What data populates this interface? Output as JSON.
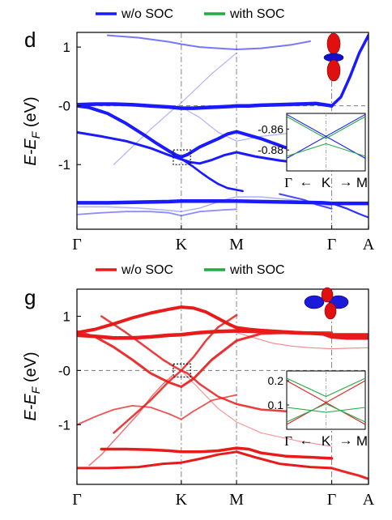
{
  "chart_data": [
    {
      "type": "line",
      "panel_label": "d",
      "legend": [
        {
          "label": "w/o SOC",
          "color": "#1a1aff"
        },
        {
          "label": "with SOC",
          "color": "#22aa44"
        }
      ],
      "ylabel_parts": [
        "E-E",
        "F",
        " (eV)"
      ],
      "ylim": [
        -2.1,
        1.25
      ],
      "yticks": [
        {
          "value": 1,
          "label": "1"
        },
        {
          "value": 0,
          "label": "-0"
        },
        {
          "value": -1,
          "label": "-1"
        }
      ],
      "xlim": [
        0,
        4.75
      ],
      "kpoints": [
        {
          "pos": 0,
          "label": "Γ"
        },
        {
          "pos": 1.7,
          "label": "K"
        },
        {
          "pos": 2.6,
          "label": "M"
        },
        {
          "pos": 4.15,
          "label": "Γ"
        },
        {
          "pos": 4.75,
          "label": "A"
        }
      ],
      "grid": "dash-dot verticals at K, M, Γ; dashed line at E=0",
      "bands": [
        {
          "w": 4.5,
          "o": 1.0,
          "x": [
            0,
            0.3,
            0.6,
            0.9,
            1.2,
            1.5,
            1.7,
            1.9,
            2.1,
            2.3,
            2.5,
            2.6,
            2.8,
            3.0,
            3.3,
            3.6,
            3.9,
            4.15
          ],
          "y": [
            0.02,
            0.03,
            0.03,
            0.02,
            0.0,
            -0.02,
            -0.04,
            -0.04,
            -0.03,
            -0.02,
            -0.01,
            0.0,
            0.0,
            0.01,
            0.02,
            0.03,
            0.04,
            0.0
          ]
        },
        {
          "w": 4.0,
          "o": 1.0,
          "x": [
            0,
            0.2,
            0.5,
            0.8,
            1.1,
            1.3,
            1.5,
            1.62,
            1.7,
            1.8,
            2.0,
            2.3,
            2.45,
            2.6,
            3.0,
            3.4,
            3.8,
            4.15
          ],
          "y": [
            0.0,
            -0.03,
            -0.13,
            -0.3,
            -0.5,
            -0.64,
            -0.77,
            -0.84,
            -0.87,
            -0.83,
            -0.7,
            -0.56,
            -0.48,
            -0.44,
            -0.56,
            -0.71,
            -0.81,
            -0.85
          ]
        },
        {
          "w": 3.0,
          "o": 1.0,
          "x": [
            0,
            0.4,
            0.8,
            1.2,
            1.5,
            1.7,
            1.85,
            2.0,
            2.2,
            2.4,
            2.6,
            2.9,
            3.3,
            3.7,
            4.15
          ],
          "y": [
            -0.45,
            -0.52,
            -0.6,
            -0.72,
            -0.84,
            -0.91,
            -0.96,
            -0.98,
            -0.92,
            -0.84,
            -0.79,
            -0.86,
            -0.93,
            -0.98,
            -1.0
          ]
        },
        {
          "w": 2.6,
          "o": 1.0,
          "x": [
            1.5,
            1.6,
            1.7,
            1.8,
            1.9,
            2.0,
            2.15,
            2.3,
            2.45,
            2.6,
            2.7
          ],
          "y": [
            -0.78,
            -0.83,
            -0.9,
            -0.97,
            -1.04,
            -1.12,
            -1.23,
            -1.33,
            -1.4,
            -1.43,
            -1.45
          ]
        },
        {
          "w": 4.5,
          "o": 1.0,
          "x": [
            0,
            0.5,
            1.0,
            1.5,
            1.7,
            2.0,
            2.3,
            2.6,
            3.0,
            3.5,
            4.0,
            4.15,
            4.75
          ],
          "y": [
            -1.65,
            -1.65,
            -1.64,
            -1.63,
            -1.62,
            -1.62,
            -1.62,
            -1.62,
            -1.63,
            -1.64,
            -1.65,
            -1.66,
            -1.66
          ]
        },
        {
          "w": 3.5,
          "o": 1.0,
          "x": [
            4.15,
            4.3,
            4.45,
            4.6,
            4.75
          ],
          "y": [
            0.0,
            0.15,
            0.5,
            0.9,
            1.2
          ]
        },
        {
          "w": 2.0,
          "o": 0.6,
          "x": [
            0.5,
            1.0,
            1.5,
            1.7,
            2.0,
            2.3,
            2.6,
            3.0,
            3.5,
            3.8
          ],
          "y": [
            1.2,
            1.16,
            1.09,
            1.05,
            1.0,
            0.98,
            0.96,
            0.98,
            1.04,
            1.1
          ]
        },
        {
          "w": 1.8,
          "o": 0.5,
          "x": [
            0,
            0.4,
            0.8,
            1.2,
            1.5,
            1.7,
            2.0,
            2.4,
            2.6
          ],
          "y": [
            -1.85,
            -1.82,
            -1.8,
            -1.8,
            -1.82,
            -1.87,
            -1.8,
            -1.77,
            -1.76
          ]
        },
        {
          "w": 1.5,
          "o": 0.35,
          "x": [
            0,
            0.5,
            1.0,
            1.4,
            1.7,
            2.0,
            2.4,
            2.6,
            3.0,
            3.5,
            4.15
          ],
          "y": [
            -1.72,
            -1.72,
            -1.74,
            -1.77,
            -1.8,
            -1.74,
            -1.6,
            -1.55,
            -1.55,
            -1.6,
            -1.7
          ]
        },
        {
          "w": 1.2,
          "o": 0.35,
          "x": [
            0.6,
            0.9,
            1.2,
            1.5,
            1.7,
            1.9,
            2.2,
            2.6
          ],
          "y": [
            -1.0,
            -0.7,
            -0.4,
            -0.12,
            0.05,
            0.25,
            0.55,
            0.9
          ]
        },
        {
          "w": 1.2,
          "o": 0.35,
          "x": [
            1.7,
            2.0,
            2.3,
            2.6,
            3.0,
            3.6,
            4.15
          ],
          "y": [
            -0.02,
            -0.2,
            -0.45,
            -0.6,
            -0.52,
            -0.45,
            -0.42
          ]
        },
        {
          "w": 2.2,
          "o": 0.9,
          "x": [
            4.15,
            4.4,
            4.6,
            4.75
          ],
          "y": [
            -1.66,
            -1.75,
            -1.84,
            -1.9
          ]
        },
        {
          "w": 2.0,
          "o": 0.8,
          "x": [
            3.3,
            3.5,
            3.7,
            3.9,
            4.15
          ],
          "y": [
            -1.5,
            -1.55,
            -1.6,
            -1.68,
            -1.75
          ]
        }
      ],
      "marker_box": {
        "x": [
          1.57,
          1.85
        ],
        "y": [
          -1.0,
          -0.75
        ]
      },
      "inset": {
        "yticks": [
          {
            "value": -0.86,
            "label": "-0.86"
          },
          {
            "value": -0.88,
            "label": "-0.88"
          }
        ],
        "ylim": [
          -0.9,
          -0.845
        ],
        "xlabels": [
          "Γ",
          "K",
          "M"
        ],
        "lines": [
          {
            "color": "#1a1aff",
            "points": [
              [
                0,
                -0.846
              ],
              [
                1,
                -0.888
              ]
            ]
          },
          {
            "color": "#1a1aff",
            "points": [
              [
                0,
                -0.888
              ],
              [
                1,
                -0.846
              ]
            ]
          },
          {
            "color": "#22aa44",
            "points": [
              [
                0,
                -0.848
              ],
              [
                0.5,
                -0.869
              ],
              [
                1,
                -0.848
              ]
            ]
          },
          {
            "color": "#22aa44",
            "points": [
              [
                0,
                -0.886
              ],
              [
                0.5,
                -0.874
              ],
              [
                1,
                -0.886
              ]
            ]
          }
        ]
      },
      "orbital": "dz2"
    },
    {
      "type": "line",
      "panel_label": "g",
      "legend": [
        {
          "label": "w/o SOC",
          "color": "#e81b1b"
        },
        {
          "label": "with SOC",
          "color": "#22aa44"
        }
      ],
      "ylabel_parts": [
        "E-E",
        "F",
        " (eV)"
      ],
      "ylim": [
        -2.1,
        1.5
      ],
      "yticks": [
        {
          "value": 1,
          "label": "1"
        },
        {
          "value": 0,
          "label": "-0"
        },
        {
          "value": -1,
          "label": "-1"
        }
      ],
      "xlim": [
        0,
        4.75
      ],
      "kpoints": [
        {
          "pos": 0,
          "label": "Γ"
        },
        {
          "pos": 1.7,
          "label": "K"
        },
        {
          "pos": 2.6,
          "label": "M"
        },
        {
          "pos": 4.15,
          "label": "Γ"
        },
        {
          "pos": 4.75,
          "label": "A"
        }
      ],
      "grid": "dash-dot verticals at K, M, Γ; dashed line at E=0",
      "bands": [
        {
          "w": 4.0,
          "o": 1.0,
          "x": [
            0,
            0.3,
            0.6,
            0.9,
            1.2,
            1.5,
            1.7,
            1.9,
            2.1,
            2.3,
            2.5,
            2.6,
            2.8,
            3.0,
            3.3,
            3.6,
            3.9,
            4.15,
            4.4,
            4.75
          ],
          "y": [
            0.7,
            0.76,
            0.86,
            0.97,
            1.06,
            1.13,
            1.17,
            1.15,
            1.08,
            0.96,
            0.84,
            0.79,
            0.76,
            0.74,
            0.72,
            0.7,
            0.68,
            0.66,
            0.66,
            0.66
          ]
        },
        {
          "w": 4.5,
          "o": 1.0,
          "x": [
            0,
            0.3,
            0.6,
            0.9,
            1.2,
            1.5,
            1.7,
            2.0,
            2.3,
            2.6,
            3.0,
            3.5,
            4.0,
            4.15,
            4.4,
            4.75
          ],
          "y": [
            0.65,
            0.63,
            0.6,
            0.6,
            0.62,
            0.65,
            0.66,
            0.7,
            0.72,
            0.73,
            0.72,
            0.7,
            0.68,
            0.62,
            0.6,
            0.6
          ]
        },
        {
          "w": 3.0,
          "o": 0.9,
          "x": [
            0,
            0.3,
            0.6,
            0.9,
            1.2,
            1.5,
            1.7,
            1.9,
            2.2,
            2.6,
            3.0,
            3.5,
            4.15
          ],
          "y": [
            0.72,
            0.62,
            0.43,
            0.2,
            -0.05,
            -0.22,
            -0.3,
            -0.15,
            0.2,
            0.55,
            0.68,
            0.7,
            0.7
          ]
        },
        {
          "w": 2.5,
          "o": 0.85,
          "x": [
            0.4,
            0.8,
            1.1,
            1.4,
            1.6,
            1.7,
            1.8,
            2.0,
            2.3,
            2.6,
            3.0,
            3.5,
            4.15
          ],
          "y": [
            1.0,
            0.7,
            0.45,
            0.2,
            0.06,
            0.0,
            -0.05,
            -0.25,
            -0.48,
            -0.62,
            -0.72,
            -0.76,
            -0.78
          ]
        },
        {
          "w": 2.5,
          "o": 0.85,
          "x": [
            0.6,
            0.9,
            1.2,
            1.5,
            1.7,
            1.9,
            2.1,
            2.3,
            2.6
          ],
          "y": [
            -1.15,
            -0.85,
            -0.55,
            -0.2,
            0.0,
            0.25,
            0.55,
            0.8,
            1.02
          ]
        },
        {
          "w": 1.8,
          "o": 0.75,
          "x": [
            0,
            0.3,
            0.6,
            0.9,
            1.2,
            1.5,
            1.7,
            1.9,
            2.2,
            2.6
          ],
          "y": [
            -1.0,
            -0.85,
            -0.72,
            -0.65,
            -0.68,
            -0.8,
            -0.9,
            -0.75,
            -0.55,
            -0.45
          ]
        },
        {
          "w": 3.5,
          "o": 1.0,
          "x": [
            0.4,
            0.8,
            1.2,
            1.5,
            1.7,
            2.0,
            2.3,
            2.6,
            2.8,
            3.0,
            3.4,
            3.8,
            4.15
          ],
          "y": [
            -1.45,
            -1.45,
            -1.46,
            -1.48,
            -1.5,
            -1.5,
            -1.48,
            -1.43,
            -1.45,
            -1.52,
            -1.58,
            -1.6,
            -1.62
          ]
        },
        {
          "w": 3.0,
          "o": 1.0,
          "x": [
            0,
            0.5,
            1.0,
            1.4,
            1.7,
            2.0,
            2.3,
            2.6,
            2.9,
            3.3,
            3.8,
            4.15
          ],
          "y": [
            -1.8,
            -1.8,
            -1.78,
            -1.72,
            -1.7,
            -1.63,
            -1.55,
            -1.5,
            -1.6,
            -1.72,
            -1.78,
            -1.8
          ]
        },
        {
          "w": 1.5,
          "o": 0.6,
          "x": [
            0.2,
            0.4,
            0.6,
            0.8,
            1.0,
            1.2,
            1.4,
            1.55
          ],
          "y": [
            -1.75,
            -1.55,
            -1.3,
            -1.05,
            -0.8,
            -0.5,
            -0.25,
            -0.1
          ]
        },
        {
          "w": 1.2,
          "o": 0.5,
          "x": [
            2.6,
            2.9,
            3.2,
            3.5,
            3.8,
            4.15,
            4.4,
            4.75
          ],
          "y": [
            0.7,
            0.6,
            0.5,
            0.45,
            0.42,
            0.4,
            0.41,
            0.42
          ]
        },
        {
          "w": 3.0,
          "o": 0.95,
          "x": [
            4.15,
            4.4,
            4.6,
            4.75
          ],
          "y": [
            -1.8,
            -1.88,
            -1.94,
            -2.0
          ]
        },
        {
          "w": 1.2,
          "o": 0.45,
          "x": [
            1.7,
            2.0,
            2.3,
            2.6,
            3.0,
            3.6,
            4.15
          ],
          "y": [
            0.0,
            -0.35,
            -0.7,
            -0.95,
            -1.15,
            -1.3,
            -1.4
          ]
        }
      ],
      "marker_box": {
        "x": [
          1.57,
          1.85
        ],
        "y": [
          -0.12,
          0.12
        ]
      },
      "inset": {
        "yticks": [
          {
            "value": 0.2,
            "label": "0.2"
          },
          {
            "value": 0.1,
            "label": "0.1"
          }
        ],
        "ylim": [
          0.0,
          0.24
        ],
        "xlabels": [
          "Γ",
          "K",
          "M"
        ],
        "lines": [
          {
            "color": "#e81b1b",
            "points": [
              [
                0,
                0.2
              ],
              [
                1,
                0.02
              ]
            ]
          },
          {
            "color": "#e81b1b",
            "points": [
              [
                0,
                0.02
              ],
              [
                1,
                0.2
              ]
            ]
          },
          {
            "color": "#22aa44",
            "points": [
              [
                0,
                0.21
              ],
              [
                0.5,
                0.135
              ],
              [
                1,
                0.21
              ]
            ]
          },
          {
            "color": "#22aa44",
            "points": [
              [
                0,
                0.03
              ],
              [
                0.5,
                0.105
              ],
              [
                1,
                0.03
              ]
            ]
          },
          {
            "color": "#22aa44",
            "points": [
              [
                0,
                0.09
              ],
              [
                0.5,
                0.07
              ],
              [
                1,
                0.09
              ]
            ]
          }
        ]
      },
      "orbital": "dxz-dyz"
    }
  ]
}
